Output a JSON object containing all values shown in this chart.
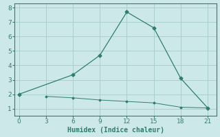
{
  "xlabel": "Humidex (Indice chaleur)",
  "bg_color": "#cce8e8",
  "line_color": "#2e7d70",
  "grid_color": "#aacece",
  "line1_x": [
    0,
    6,
    9,
    12,
    15,
    18,
    21
  ],
  "line1_y": [
    2.0,
    3.35,
    4.7,
    7.7,
    6.6,
    3.1,
    1.05
  ],
  "line2_x": [
    3,
    6,
    9,
    12,
    15,
    18,
    21
  ],
  "line2_y": [
    1.85,
    1.75,
    1.6,
    1.5,
    1.4,
    1.1,
    1.05
  ],
  "xlim": [
    -0.5,
    22
  ],
  "ylim": [
    0.5,
    8.3
  ],
  "xticks": [
    0,
    3,
    6,
    9,
    12,
    15,
    18,
    21
  ],
  "yticks": [
    1,
    2,
    3,
    4,
    5,
    6,
    7,
    8
  ]
}
